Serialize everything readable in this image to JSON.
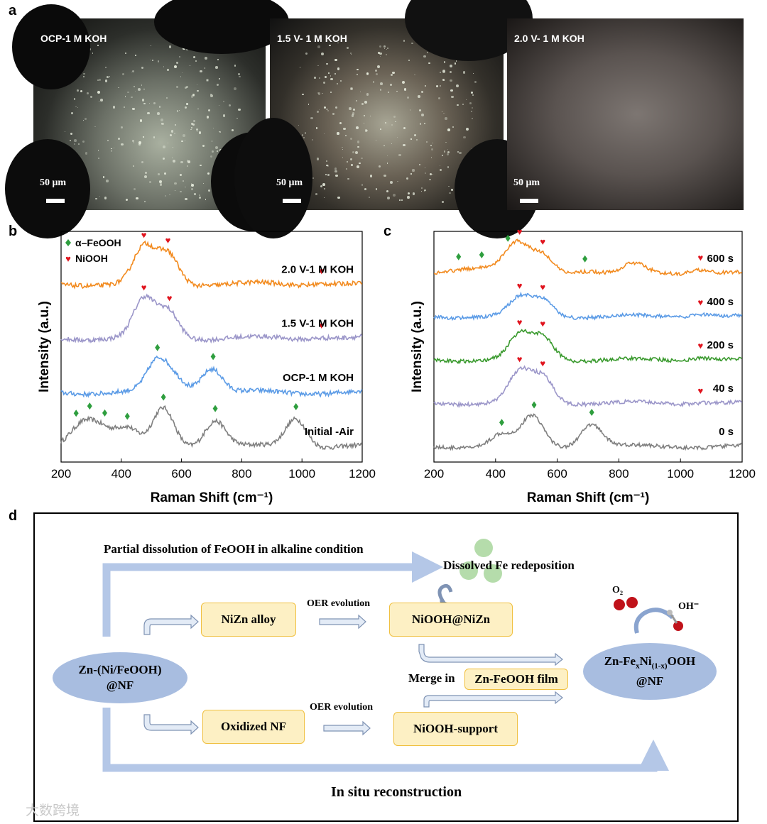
{
  "panel_labels": {
    "a": "a",
    "b": "b",
    "c": "c",
    "d": "d"
  },
  "micrographs": [
    {
      "caption": "OCP-1 M KOH",
      "scale": "50 μm"
    },
    {
      "caption": "1.5 V- 1 M KOH",
      "scale": "50 μm"
    },
    {
      "caption": "2.0 V- 1 M KOH",
      "scale": "50 μm"
    }
  ],
  "chart_data": [
    {
      "type": "line",
      "xlabel": "Raman Shift (cm⁻¹)",
      "ylabel": "Intensity (a.u.)",
      "xlim": [
        200,
        1200
      ],
      "xticks": [
        200,
        400,
        600,
        800,
        1000,
        1200
      ],
      "legend": [
        {
          "name": "α–FeOOH",
          "marker": "diamond",
          "color": "#2e9e3e"
        },
        {
          "name": "NiOOH",
          "marker": "heart",
          "color": "#e0141e"
        }
      ],
      "series": [
        {
          "name": "Initial -Air",
          "color": "#7f7f7f",
          "peaks": [
            [
              250,
              0.35
            ],
            [
              295,
              0.5
            ],
            [
              348,
              0.35
            ],
            [
              420,
              0.45
            ],
            [
              540,
              1.0
            ],
            [
              712,
              0.7
            ],
            [
              980,
              0.75
            ]
          ],
          "diamonds": [
            250,
            295,
            345,
            420,
            540,
            712,
            980
          ],
          "hearts": []
        },
        {
          "name": "OCP-1 M KOH",
          "color": "#5b9be6",
          "peaks": [
            [
              520,
              0.8
            ],
            [
              580,
              0.35
            ],
            [
              700,
              0.65
            ]
          ],
          "diamonds": [
            520,
            705
          ],
          "hearts": []
        },
        {
          "name": "1.5 V-1 M KOH",
          "color": "#9b96c9",
          "peaks": [
            [
              475,
              1.0
            ],
            [
              555,
              0.72
            ],
            [
              1065,
              0.05
            ]
          ],
          "diamonds": [],
          "hearts": [
            475,
            560,
            1065
          ]
        },
        {
          "name": "2.0 V-1 M KOH",
          "color": "#f28a1e",
          "peaks": [
            [
              475,
              0.95
            ],
            [
              555,
              0.8
            ],
            [
              1065,
              0.05
            ]
          ],
          "diamonds": [],
          "hearts": [
            475,
            555,
            1065
          ]
        }
      ]
    },
    {
      "type": "line",
      "xlabel": "Raman Shift (cm⁻¹)",
      "ylabel": "Intensity (a.u.)",
      "xlim": [
        200,
        1200
      ],
      "xticks": [
        200,
        400,
        600,
        800,
        1000,
        1200
      ],
      "series": [
        {
          "name": "0 s",
          "color": "#7f7f7f",
          "peaks": [
            [
              420,
              0.4
            ],
            [
              520,
              1.0
            ],
            [
              712,
              0.75
            ]
          ],
          "diamonds": [
            420,
            525,
            712
          ],
          "hearts": []
        },
        {
          "name": "40 s",
          "color": "#9b96c9",
          "peaks": [
            [
              478,
              1.0
            ],
            [
              553,
              0.85
            ],
            [
              1065,
              0.05
            ]
          ],
          "diamonds": [],
          "hearts": [
            478,
            553,
            1065
          ]
        },
        {
          "name": "200 s",
          "color": "#3a9a2e",
          "peaks": [
            [
              478,
              0.8
            ],
            [
              553,
              0.75
            ],
            [
              1065,
              0.1
            ]
          ],
          "diamonds": [],
          "hearts": [
            478,
            553,
            1065
          ]
        },
        {
          "name": "400 s",
          "color": "#5b9be6",
          "peaks": [
            [
              478,
              0.6
            ],
            [
              553,
              0.55
            ],
            [
              1065,
              0.1
            ]
          ],
          "diamonds": [],
          "hearts": [
            478,
            553,
            1065
          ]
        },
        {
          "name": "600 s",
          "color": "#f28a1e",
          "peaks": [
            [
              280,
              0.15
            ],
            [
              355,
              0.2
            ],
            [
              440,
              0.35
            ],
            [
              478,
              0.75
            ],
            [
              553,
              0.6
            ],
            [
              690,
              0.1
            ],
            [
              850,
              0.3
            ],
            [
              1065,
              0.15
            ]
          ],
          "diamonds": [
            280,
            355,
            440,
            690
          ],
          "hearts": [
            478,
            553,
            1065
          ]
        }
      ]
    }
  ],
  "scheme": {
    "start": "Zn-(Ni/FeOOH)\n@NF",
    "nizn": "NiZn alloy",
    "oer1": "OER evolution",
    "niooh_nizn": "NiOOH@NiZn",
    "oxidized_nf": "Oxidized NF",
    "oer2": "OER evolution",
    "niooh_support": "NiOOH-support",
    "partial": "Partial dissolution of FeOOH in alkaline condition",
    "redeposition": "Dissolved Fe redeposition",
    "merge": "Merge in",
    "film": "Zn-FeOOH film",
    "insitu": "In situ reconstruction",
    "o2": "O₂",
    "oh": "OH⁻"
  },
  "watermark": "大数跨境",
  "colors": {
    "arrow": "#b4c7e7",
    "box_fill": "#fdf0c4",
    "box_border": "#f0c040",
    "ellipse": "#a8bde0"
  }
}
